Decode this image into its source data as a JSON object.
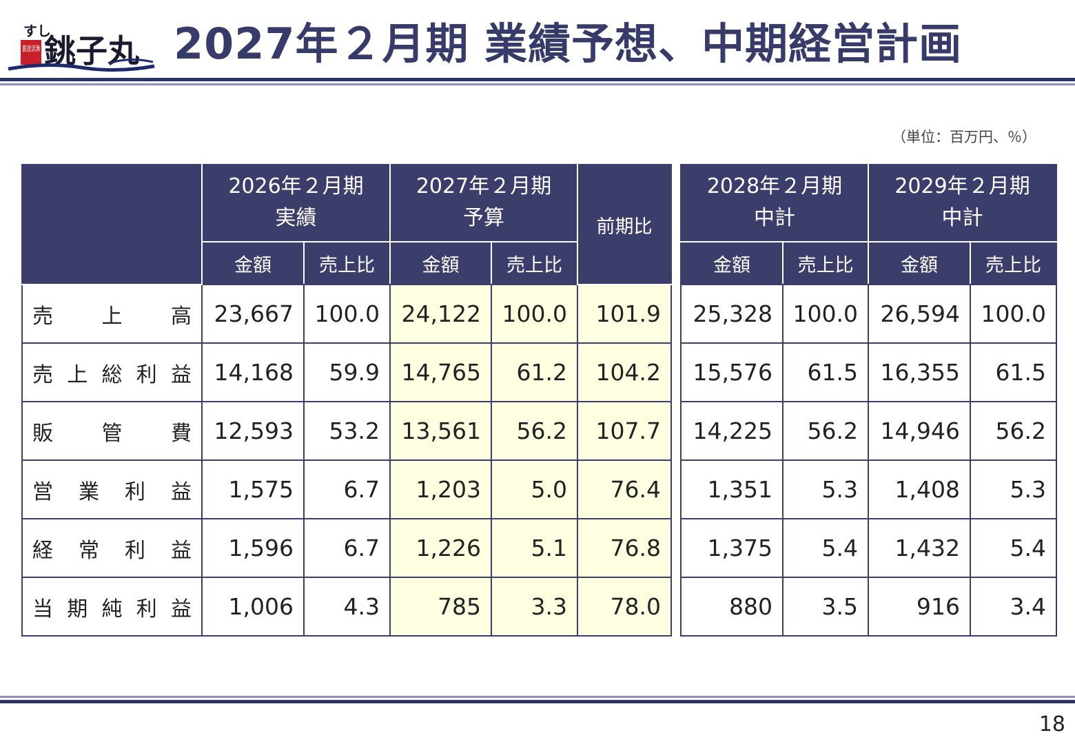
{
  "brand": {
    "logo_small": "すし",
    "logo_stamp": "直送活漁",
    "logo_main": "銚子丸"
  },
  "title": "2027年２月期 業績予想、中期経営計画",
  "unit_note": "（単位：百万円、％）",
  "left_table": {
    "periods": [
      {
        "line1": "2026年２月期",
        "line2": "実績"
      },
      {
        "line1": "2027年２月期",
        "line2": "予算"
      }
    ],
    "yoy_header": "前期比",
    "sub_headers": [
      "金額",
      "売上比",
      "金額",
      "売上比"
    ],
    "rows": [
      {
        "label": "売上高",
        "a1": "23,667",
        "r1": "100.0",
        "a2": "24,122",
        "r2": "100.0",
        "yoy": "101.9"
      },
      {
        "label": "売上総利益",
        "a1": "14,168",
        "r1": "59.9",
        "a2": "14,765",
        "r2": "61.2",
        "yoy": "104.2"
      },
      {
        "label": "販管費",
        "a1": "12,593",
        "r1": "53.2",
        "a2": "13,561",
        "r2": "56.2",
        "yoy": "107.7"
      },
      {
        "label": "営業利益",
        "a1": "1,575",
        "r1": "6.7",
        "a2": "1,203",
        "r2": "5.0",
        "yoy": "76.4"
      },
      {
        "label": "経常利益",
        "a1": "1,596",
        "r1": "6.7",
        "a2": "1,226",
        "r2": "5.1",
        "yoy": "76.8"
      },
      {
        "label": "当期純利益",
        "a1": "1,006",
        "r1": "4.3",
        "a2": "785",
        "r2": "3.3",
        "yoy": "78.0"
      }
    ]
  },
  "right_table": {
    "periods": [
      {
        "line1": "2028年２月期",
        "line2": "中計"
      },
      {
        "line1": "2029年２月期",
        "line2": "中計"
      }
    ],
    "sub_headers": [
      "金額",
      "売上比",
      "金額",
      "売上比"
    ],
    "rows": [
      {
        "a1": "25,328",
        "r1": "100.0",
        "a2": "26,594",
        "r2": "100.0"
      },
      {
        "a1": "15,576",
        "r1": "61.5",
        "a2": "16,355",
        "r2": "61.5"
      },
      {
        "a1": "14,225",
        "r1": "56.2",
        "a2": "14,946",
        "r2": "56.2"
      },
      {
        "a1": "1,351",
        "r1": "5.3",
        "a2": "1,408",
        "r2": "5.3"
      },
      {
        "a1": "1,375",
        "r1": "5.4",
        "a2": "1,432",
        "r2": "5.4"
      },
      {
        "a1": "880",
        "r1": "3.5",
        "a2": "916",
        "r2": "3.4"
      }
    ]
  },
  "page_number": "18",
  "colors": {
    "navy": "#3b3d6b",
    "highlight": "#fefee0",
    "title": "#373b69"
  }
}
